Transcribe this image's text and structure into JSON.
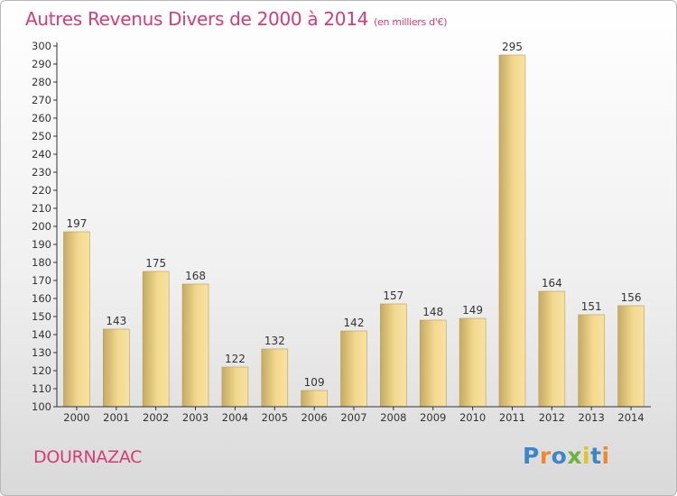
{
  "header": {
    "title": "Autres Revenus Divers de 2000 à 2014",
    "unit": "(en milliers d'€)"
  },
  "footer": {
    "commune": "DOURNAZAC",
    "logo_letters": [
      "P",
      "r",
      "o",
      "x",
      "i",
      "t",
      "i"
    ]
  },
  "colors": {
    "title": "#d63c73",
    "bar_light": "#f6dc95",
    "bar_dark": "#c4aa62",
    "axis": "#333333"
  },
  "chart_data": {
    "type": "bar",
    "title": "Autres Revenus Divers de 2000 à 2014",
    "subtitle": "(en milliers d'€)",
    "categories": [
      "2000",
      "2001",
      "2002",
      "2003",
      "2004",
      "2005",
      "2006",
      "2007",
      "2008",
      "2009",
      "2010",
      "2011",
      "2012",
      "2013",
      "2014"
    ],
    "values": [
      197,
      143,
      175,
      168,
      122,
      132,
      109,
      142,
      157,
      148,
      149,
      295,
      164,
      151,
      156
    ],
    "ylim": [
      100,
      300
    ],
    "ytick_step": 10,
    "grid": false,
    "data_labels": true
  }
}
